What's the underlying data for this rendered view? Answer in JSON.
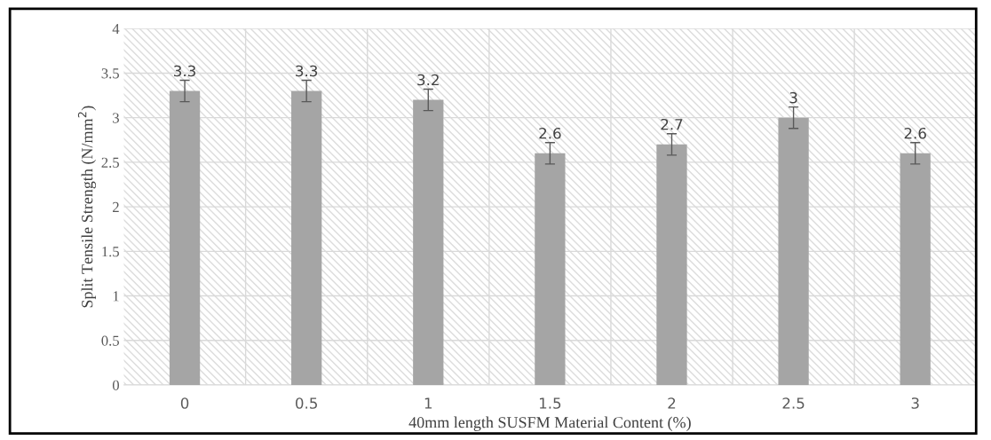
{
  "chart_data": {
    "type": "bar",
    "xlabel": "40mm length SUSFM Material Content (%)",
    "ylabel": "Split Tensile Strength (N/mm$^{2}$)",
    "categories": [
      "0",
      "0.5",
      "1",
      "1.5",
      "2",
      "2.5",
      "3"
    ],
    "values": [
      3.3,
      3.3,
      3.2,
      2.6,
      2.7,
      3,
      2.6
    ],
    "errors": [
      0.12,
      0.12,
      0.12,
      0.12,
      0.12,
      0.12,
      0.12
    ],
    "color": "#a5a5a5",
    "data_labels": true,
    "ylim": [
      0,
      4
    ],
    "yticks": [
      0,
      0.5,
      1,
      1.5,
      2,
      2.5,
      3,
      3.5,
      4
    ],
    "grid": true
  }
}
